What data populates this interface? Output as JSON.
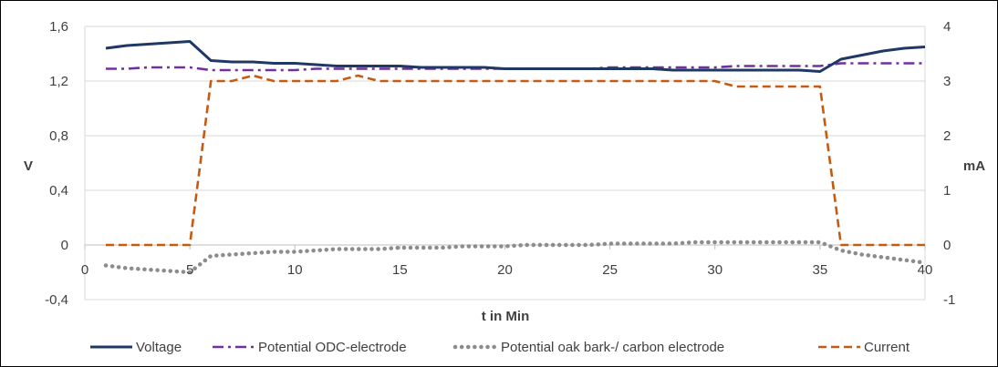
{
  "chart_data": {
    "type": "line",
    "title": "",
    "xlabel": "t in Min",
    "ylabel_left": "V",
    "ylabel_right": "mA",
    "xlim": [
      0,
      40
    ],
    "ylim_left": [
      -0.4,
      1.6
    ],
    "ylim_right": [
      -1,
      4
    ],
    "x_ticks": [
      0,
      5,
      10,
      15,
      20,
      25,
      30,
      35,
      40
    ],
    "x_tick_labels": [
      "0",
      "5",
      "10",
      "15",
      "20",
      "25",
      "30",
      "35",
      "40"
    ],
    "y_left_ticks": [
      -0.4,
      0,
      0.4,
      0.8,
      1.2,
      1.6
    ],
    "y_left_tick_labels": [
      "-0,4",
      "0",
      "0,4",
      "0,8",
      "1,2",
      "1,6"
    ],
    "y_right_ticks": [
      -1,
      0,
      1,
      2,
      3,
      4
    ],
    "y_right_tick_labels": [
      "-1",
      "0",
      "1",
      "2",
      "3",
      "4"
    ],
    "grid": true,
    "legend_position": "bottom",
    "series": [
      {
        "name": "Voltage",
        "axis": "left",
        "color": "#1f3864",
        "style": "solid",
        "x": [
          1,
          2,
          3,
          4,
          5,
          6,
          7,
          8,
          9,
          10,
          11,
          12,
          13,
          14,
          15,
          16,
          17,
          18,
          19,
          20,
          21,
          22,
          23,
          24,
          25,
          26,
          27,
          28,
          29,
          30,
          31,
          32,
          33,
          34,
          35,
          36,
          37,
          38,
          39,
          40
        ],
        "values": [
          1.44,
          1.46,
          1.47,
          1.48,
          1.49,
          1.35,
          1.34,
          1.34,
          1.33,
          1.33,
          1.32,
          1.31,
          1.31,
          1.31,
          1.31,
          1.3,
          1.3,
          1.3,
          1.3,
          1.29,
          1.29,
          1.29,
          1.29,
          1.29,
          1.29,
          1.29,
          1.29,
          1.28,
          1.28,
          1.28,
          1.28,
          1.28,
          1.28,
          1.28,
          1.27,
          1.36,
          1.39,
          1.42,
          1.44,
          1.45
        ]
      },
      {
        "name": "Potential ODC-electrode",
        "axis": "left",
        "color": "#7030a0",
        "style": "dashdot",
        "x": [
          1,
          2,
          3,
          4,
          5,
          6,
          7,
          8,
          9,
          10,
          11,
          12,
          13,
          14,
          15,
          16,
          17,
          18,
          19,
          20,
          21,
          22,
          23,
          24,
          25,
          26,
          27,
          28,
          29,
          30,
          31,
          32,
          33,
          34,
          35,
          36,
          37,
          38,
          39,
          40
        ],
        "values": [
          1.29,
          1.29,
          1.3,
          1.3,
          1.3,
          1.28,
          1.28,
          1.28,
          1.28,
          1.28,
          1.29,
          1.29,
          1.29,
          1.29,
          1.29,
          1.29,
          1.29,
          1.29,
          1.29,
          1.29,
          1.29,
          1.29,
          1.29,
          1.29,
          1.3,
          1.3,
          1.3,
          1.3,
          1.3,
          1.3,
          1.31,
          1.31,
          1.31,
          1.31,
          1.31,
          1.33,
          1.33,
          1.33,
          1.33,
          1.33
        ]
      },
      {
        "name": "Potential oak bark-/ carbon electrode",
        "axis": "left",
        "color": "#8c8c8c",
        "style": "dotted",
        "x": [
          1,
          2,
          3,
          4,
          5,
          6,
          7,
          8,
          9,
          10,
          11,
          12,
          13,
          14,
          15,
          16,
          17,
          18,
          19,
          20,
          21,
          22,
          23,
          24,
          25,
          26,
          27,
          28,
          29,
          30,
          31,
          32,
          33,
          34,
          35,
          36,
          37,
          38,
          39,
          40
        ],
        "values": [
          -0.15,
          -0.17,
          -0.18,
          -0.19,
          -0.2,
          -0.08,
          -0.07,
          -0.06,
          -0.05,
          -0.05,
          -0.04,
          -0.03,
          -0.03,
          -0.03,
          -0.02,
          -0.02,
          -0.02,
          -0.01,
          -0.01,
          -0.01,
          0.0,
          0.0,
          0.0,
          0.0,
          0.01,
          0.01,
          0.01,
          0.01,
          0.02,
          0.02,
          0.02,
          0.02,
          0.02,
          0.02,
          0.02,
          -0.04,
          -0.07,
          -0.09,
          -0.11,
          -0.13
        ]
      },
      {
        "name": "Current",
        "axis": "right",
        "color": "#c55a11",
        "style": "dashed",
        "x": [
          1,
          2,
          3,
          4,
          5,
          6,
          7,
          8,
          9,
          10,
          11,
          12,
          13,
          14,
          15,
          16,
          17,
          18,
          19,
          20,
          21,
          22,
          23,
          24,
          25,
          26,
          27,
          28,
          29,
          30,
          31,
          32,
          33,
          34,
          35,
          36,
          37,
          38,
          39,
          40
        ],
        "values": [
          0,
          0,
          0,
          0,
          0,
          3.0,
          3.0,
          3.1,
          3.0,
          3.0,
          3.0,
          3.0,
          3.1,
          3.0,
          3.0,
          3.0,
          3.0,
          3.0,
          3.0,
          3.0,
          3.0,
          3.0,
          3.0,
          3.0,
          3.0,
          3.0,
          3.0,
          3.0,
          3.0,
          3.0,
          2.9,
          2.9,
          2.9,
          2.9,
          2.9,
          0,
          0,
          0,
          0,
          0
        ]
      }
    ]
  }
}
